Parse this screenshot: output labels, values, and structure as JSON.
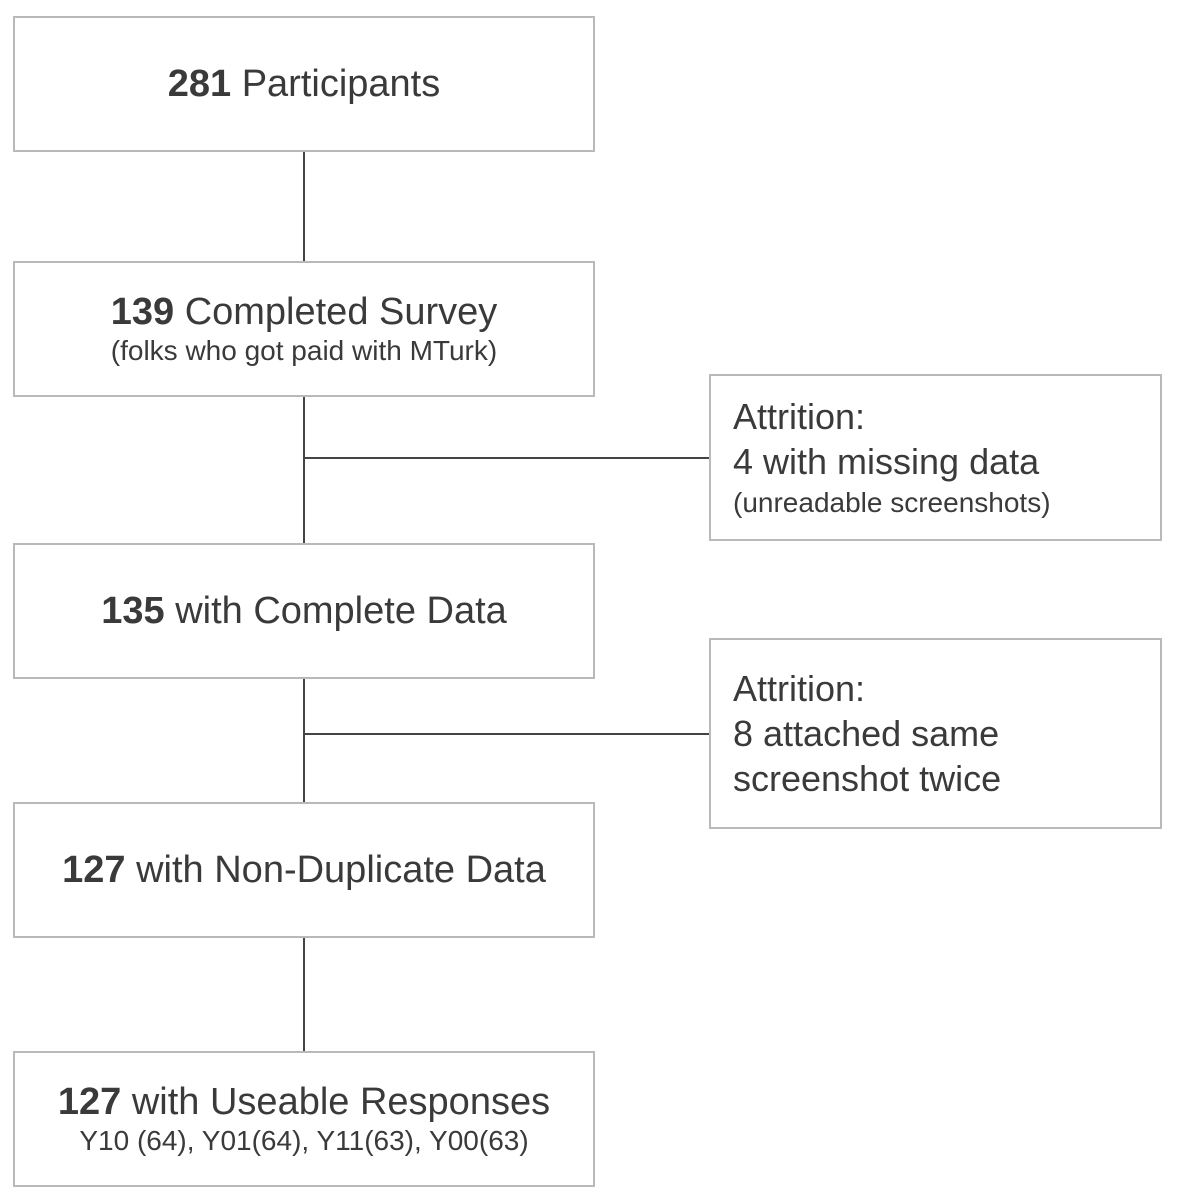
{
  "nodes": [
    {
      "id": "participants",
      "count": "281",
      "label": "Participants",
      "sub": ""
    },
    {
      "id": "completed",
      "count": "139",
      "label": "Completed Survey",
      "sub": "(folks who got paid with MTurk)"
    },
    {
      "id": "complete-data",
      "count": "135",
      "label": "with Complete Data",
      "sub": ""
    },
    {
      "id": "non-duplicate",
      "count": "127",
      "label": "with Non-Duplicate Data",
      "sub": ""
    },
    {
      "id": "useable",
      "count": "127",
      "label": "with Useable Responses",
      "sub": "Y10 (64),  Y01(64), Y11(63), Y00(63)"
    }
  ],
  "attrition": [
    {
      "title": "Attrition:",
      "line": "4 with missing data",
      "note": "(unreadable screenshots)"
    },
    {
      "title": "Attrition:",
      "line": "8 attached same",
      "line2": "screenshot twice"
    }
  ]
}
